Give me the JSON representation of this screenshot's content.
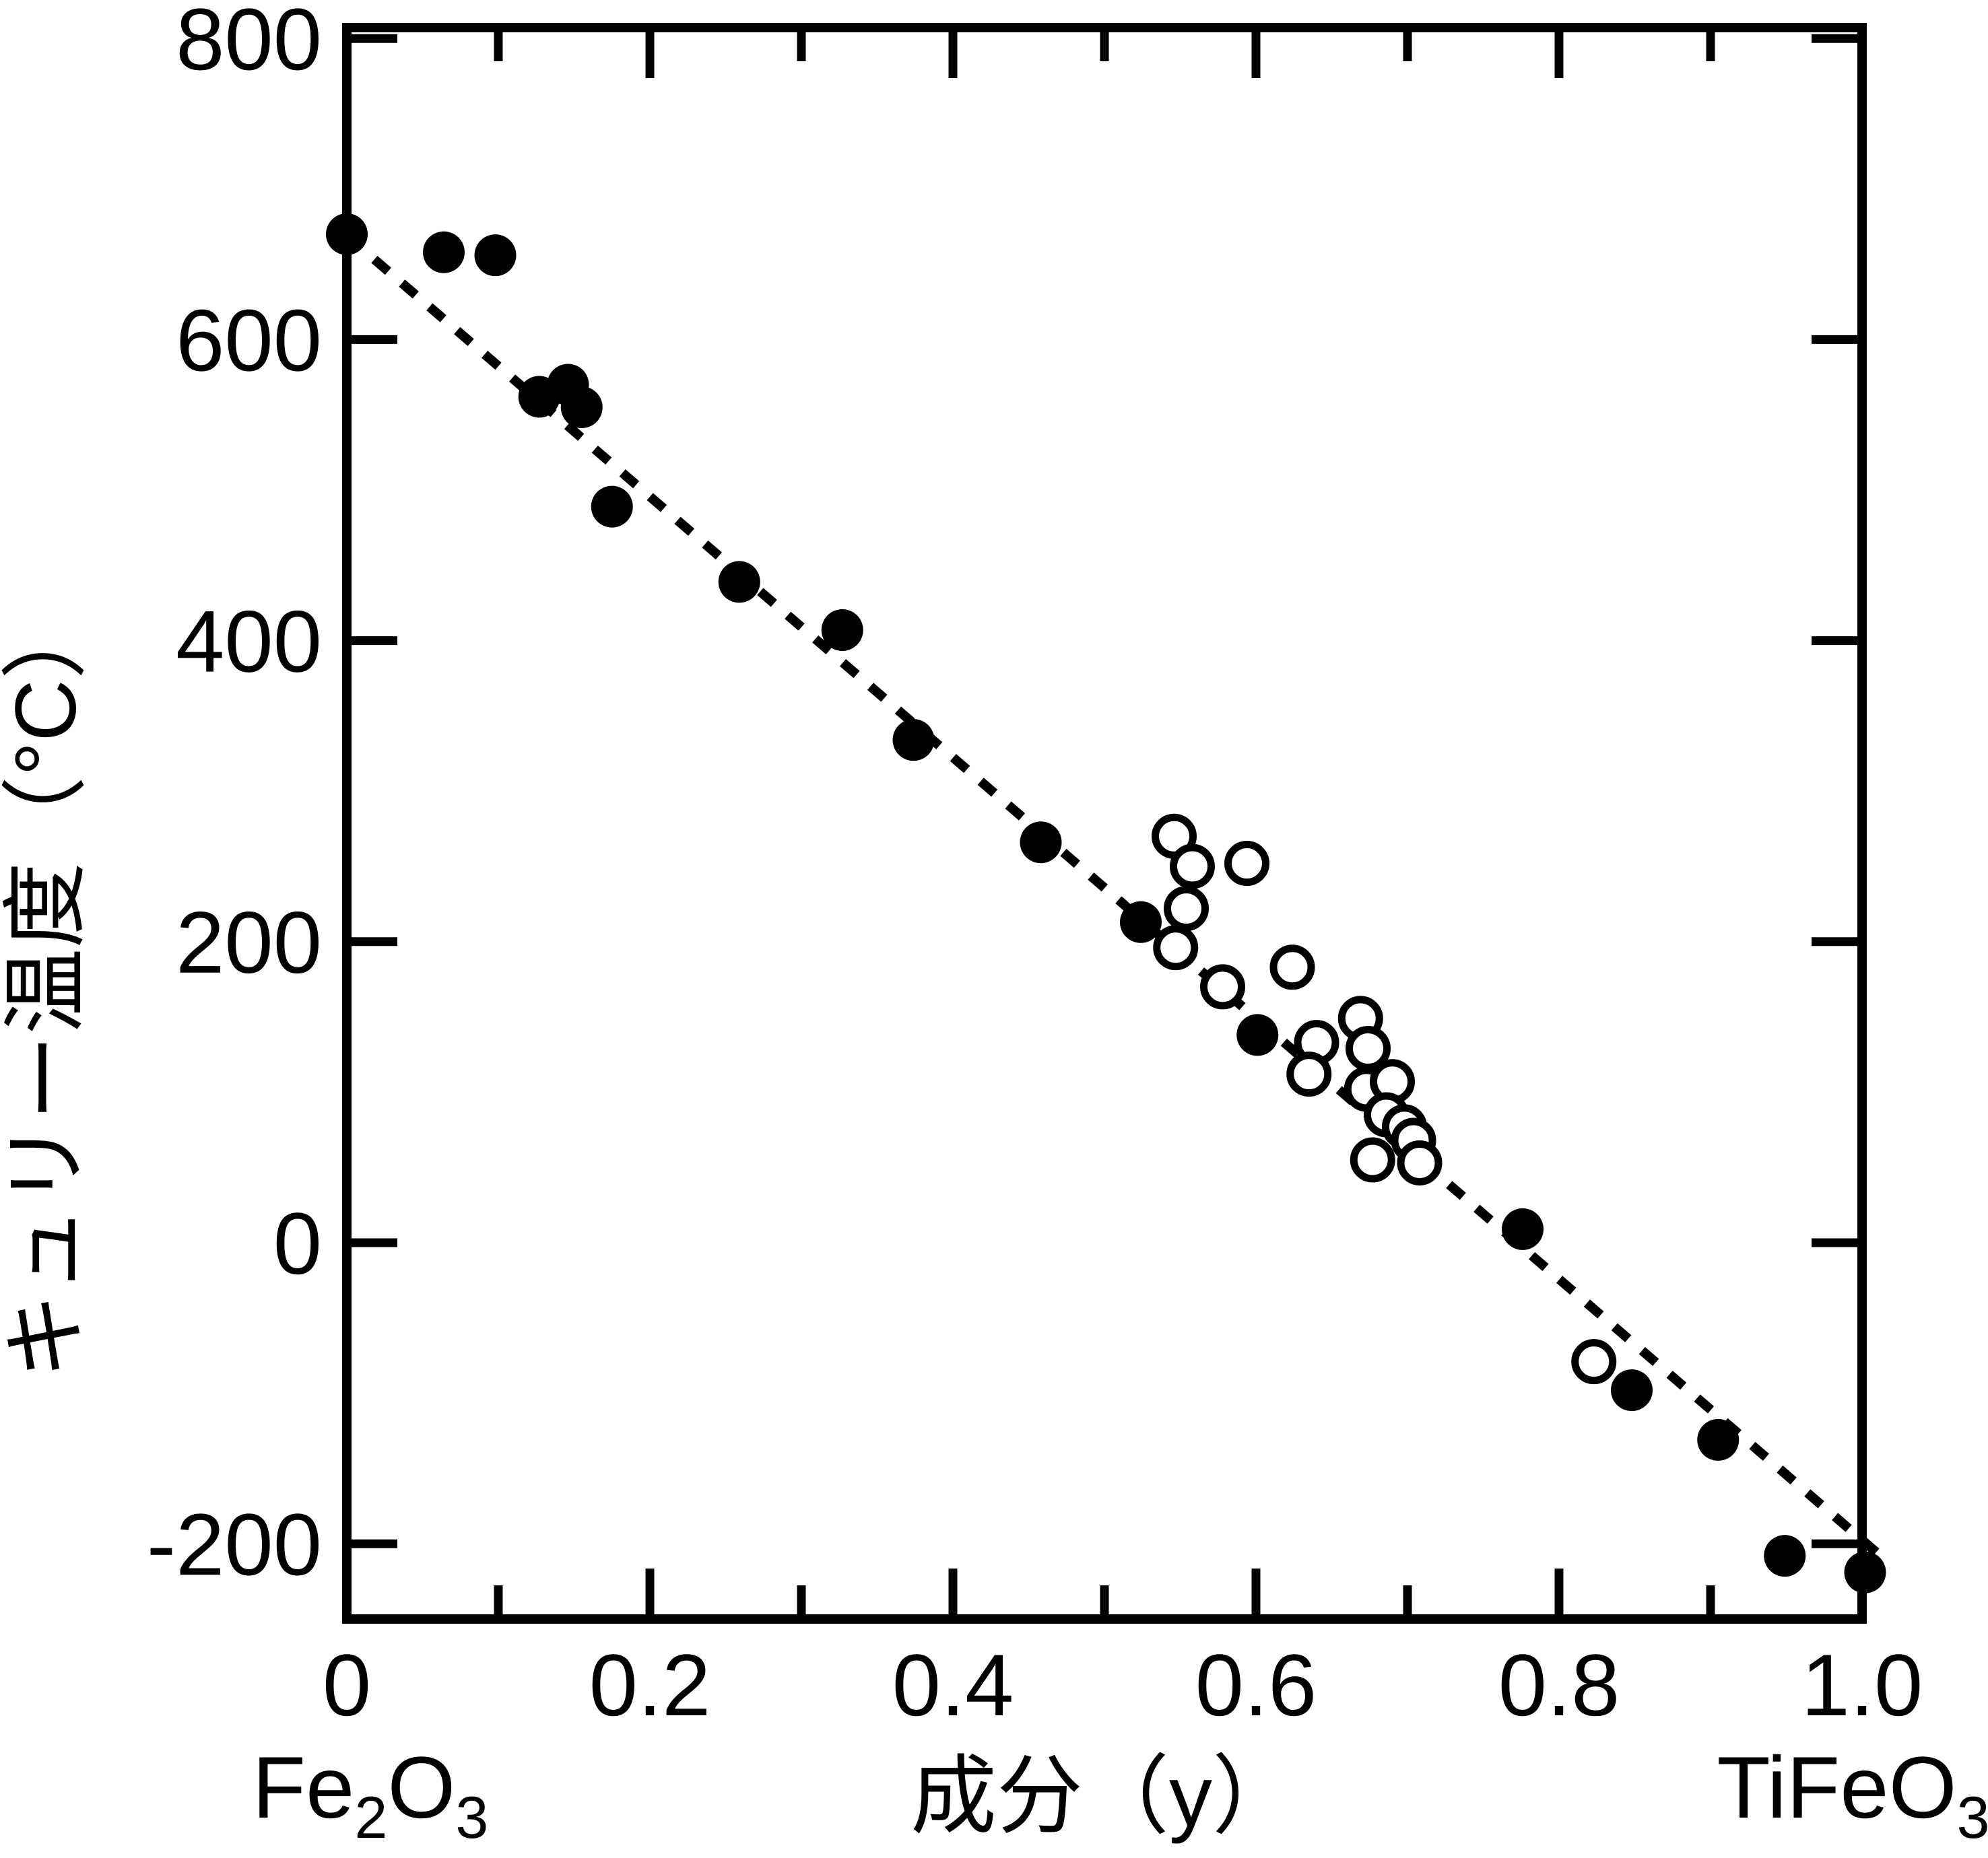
{
  "page": {
    "background_color": "#ffffff",
    "foreground_color": "#000000"
  },
  "chart_data": {
    "type": "scatter",
    "title": "",
    "xlabel": "成分（y）",
    "ylabel": "キュリー温度（°C）",
    "grid": false,
    "legend": null,
    "x_axis": {
      "min": 0,
      "max": 1.02,
      "major_ticks": [
        0,
        0.2,
        0.4,
        0.6,
        0.8,
        1.0
      ],
      "major_tick_labels": [
        "0",
        "0.2",
        "0.4",
        "0.6",
        "0.8",
        "1.0"
      ],
      "minor_ticks": [
        0.1,
        0.3,
        0.5,
        0.7,
        0.9
      ],
      "end_member_left": {
        "text": "Fe2O3",
        "segments": [
          [
            "Fe",
            false
          ],
          [
            "2",
            true
          ],
          [
            "O",
            false
          ],
          [
            "3",
            true
          ]
        ]
      },
      "end_member_right": {
        "text": "TiFeO3",
        "segments": [
          [
            "TiFeO",
            false
          ],
          [
            "3",
            true
          ]
        ]
      }
    },
    "y_axis": {
      "min": -250,
      "max": 806,
      "unit": "°C",
      "major_ticks": [
        800,
        600,
        400,
        200,
        0,
        -200
      ],
      "major_tick_labels": [
        "800",
        "600",
        "400",
        "200",
        "0",
        "-200"
      ]
    },
    "series": [
      {
        "name": "curie-temperature-filled",
        "marker": "filled-circle",
        "color": "#000000",
        "points": [
          [
            0.0,
            670
          ],
          [
            0.064,
            658
          ],
          [
            0.098,
            656
          ],
          [
            0.127,
            562
          ],
          [
            0.146,
            570
          ],
          [
            0.155,
            555
          ],
          [
            0.175,
            489
          ],
          [
            0.259,
            439
          ],
          [
            0.327,
            407
          ],
          [
            0.374,
            334
          ],
          [
            0.458,
            266
          ],
          [
            0.524,
            213
          ],
          [
            0.601,
            138
          ],
          [
            0.776,
            9
          ],
          [
            0.848,
            -98
          ],
          [
            0.905,
            -131
          ],
          [
            0.949,
            -208
          ],
          [
            1.002,
            -219
          ]
        ]
      },
      {
        "name": "curie-temperature-open",
        "marker": "open-circle",
        "color": "#000000",
        "points": [
          [
            0.546,
            270
          ],
          [
            0.558,
            250
          ],
          [
            0.594,
            252
          ],
          [
            0.554,
            222
          ],
          [
            0.547,
            196
          ],
          [
            0.578,
            170
          ],
          [
            0.624,
            183
          ],
          [
            0.64,
            133
          ],
          [
            0.635,
            112
          ],
          [
            0.669,
            149
          ],
          [
            0.674,
            129
          ],
          [
            0.673,
            102
          ],
          [
            0.69,
            107
          ],
          [
            0.686,
            85
          ],
          [
            0.698,
            77
          ],
          [
            0.704,
            68
          ],
          [
            0.708,
            53
          ],
          [
            0.677,
            55
          ],
          [
            0.823,
            -79
          ]
        ]
      }
    ],
    "trend_line": {
      "style": "dotted",
      "from": [
        0.0,
        669
      ],
      "to": [
        1.011,
        -207
      ]
    }
  }
}
